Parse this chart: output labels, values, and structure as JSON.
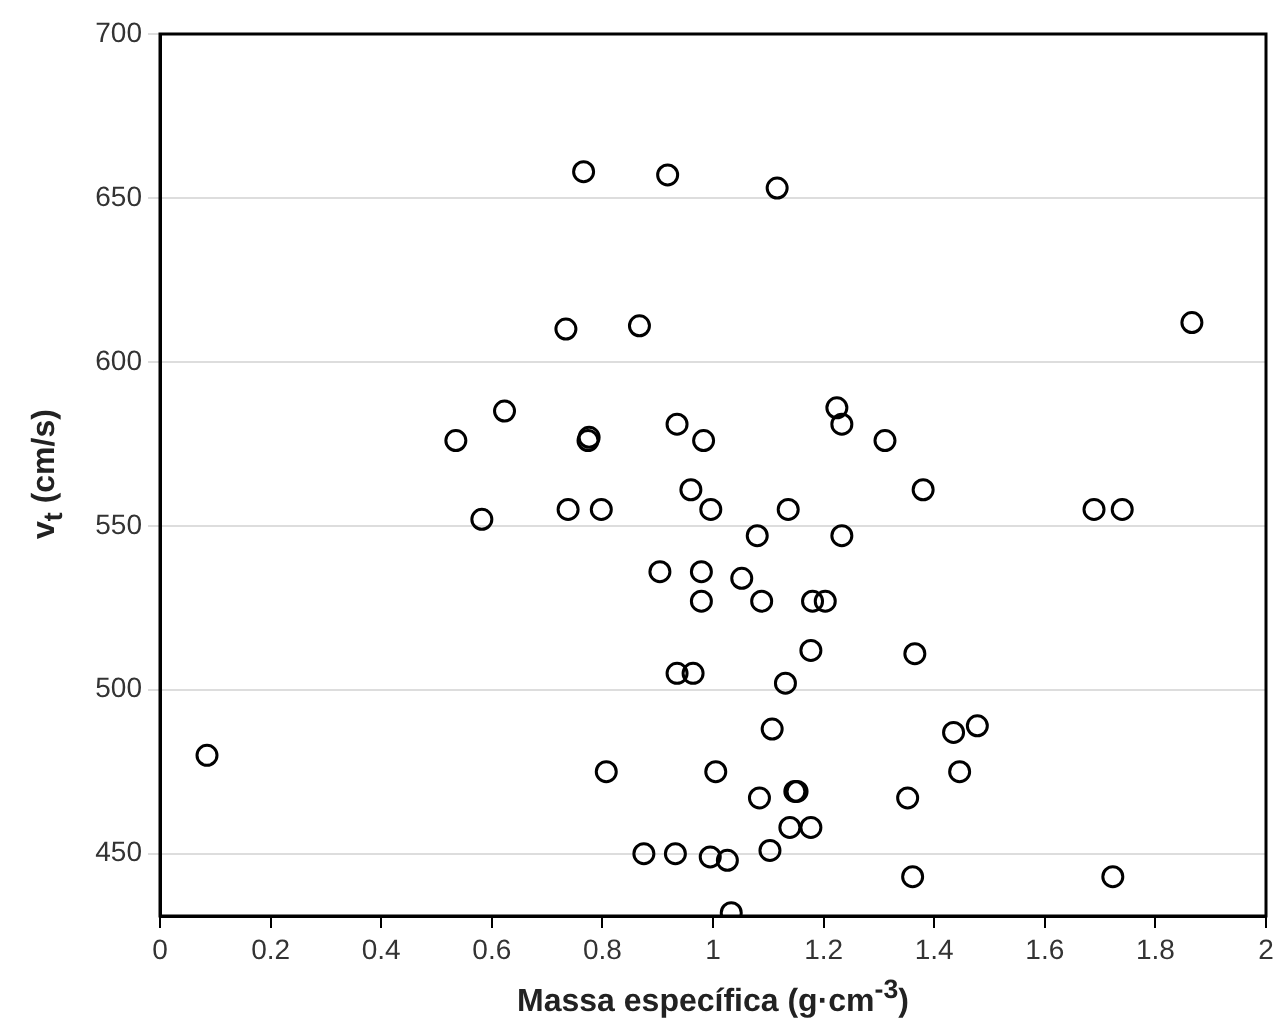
{
  "chart_data": {
    "type": "scatter",
    "xlabel": "Massa específica (g·cm$^{-3}$)",
    "ylabel": "v$_{t}$ (cm/s)",
    "xlim": [
      0,
      2
    ],
    "xticks": [
      0,
      0.2,
      0.4,
      0.6,
      0.8,
      1,
      1.2,
      1.4,
      1.6,
      1.8,
      2
    ],
    "ylim": [
      431,
      700
    ],
    "yticks": [
      450,
      500,
      550,
      600,
      650,
      700
    ],
    "grid": "y",
    "legend": false,
    "marker": "circle",
    "series": [
      {
        "color": "#000000",
        "x": [
          0.766,
          0.918,
          1.116,
          0.734,
          0.867,
          1.866,
          0.535,
          0.623,
          0.774,
          0.776,
          0.582,
          0.738,
          0.798,
          0.935,
          0.983,
          0.96,
          0.996,
          1.136,
          1.08,
          1.224,
          1.233,
          1.311,
          1.38,
          1.233,
          1.689,
          1.74,
          0.904,
          0.979,
          1.052,
          0.979,
          1.088,
          1.18,
          1.203,
          1.177,
          1.365,
          0.935,
          0.964,
          1.131,
          0.085,
          0.807,
          1.005,
          1.107,
          1.435,
          1.478,
          1.446,
          1.084,
          1.148,
          1.152,
          1.352,
          1.139,
          1.177,
          0.875,
          0.932,
          0.995,
          1.026,
          1.103,
          1.361,
          1.723,
          1.033
        ],
        "values": [
          658,
          657,
          653,
          610,
          611,
          612,
          576,
          585,
          576,
          577,
          552,
          555,
          555,
          581,
          576,
          561,
          555,
          555,
          547,
          586,
          581,
          576,
          561,
          547,
          555,
          555,
          536,
          536,
          534,
          527,
          527,
          527,
          527,
          512,
          511,
          505,
          505,
          502,
          480,
          475,
          475,
          488,
          487,
          489,
          475,
          467,
          469,
          469,
          467,
          458,
          458,
          450,
          450,
          449,
          448,
          451,
          443,
          443,
          432
        ]
      }
    ]
  }
}
